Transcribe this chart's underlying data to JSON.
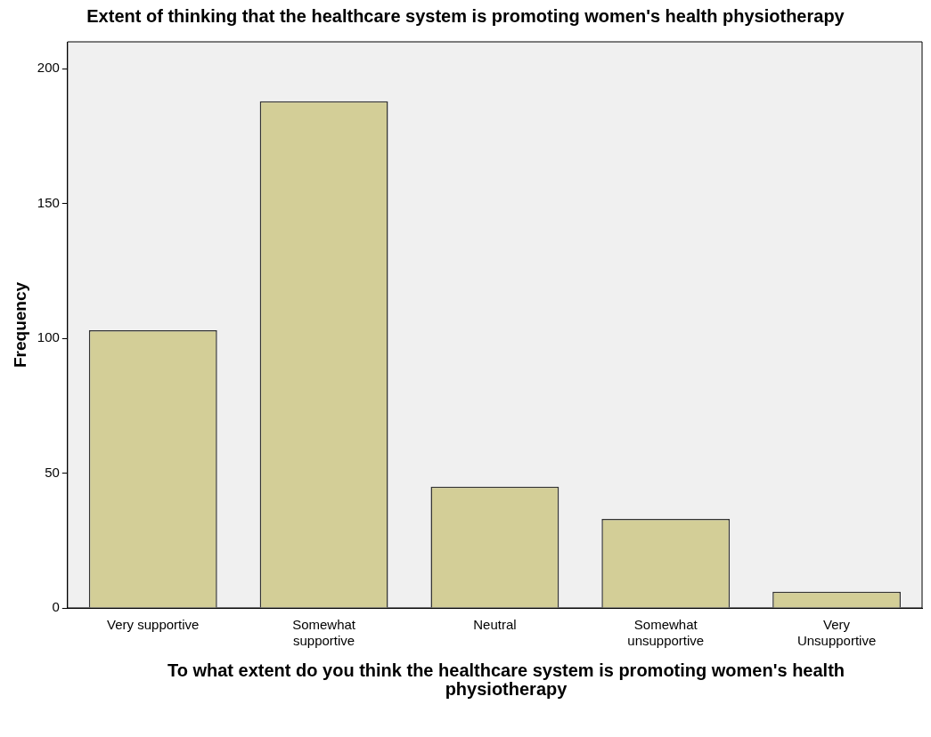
{
  "chart_data": {
    "type": "bar",
    "title": "Extent of thinking that the healthcare system is promoting women's health physiotherapy",
    "xlabel": "To what extent do you think the healthcare system is promoting women's health physiotherapy",
    "ylabel": "Frequency",
    "categories": [
      "Very supportive",
      "Somewhat supportive",
      "Neutral",
      "Somewhat unsupportive",
      "Very Unsupportive"
    ],
    "values": [
      103,
      188,
      45,
      33,
      6
    ],
    "color": "#d3ce97",
    "ylim": [
      0,
      210
    ],
    "yticks": [
      0,
      50,
      100,
      150,
      200
    ],
    "grid": false,
    "legend": false
  }
}
